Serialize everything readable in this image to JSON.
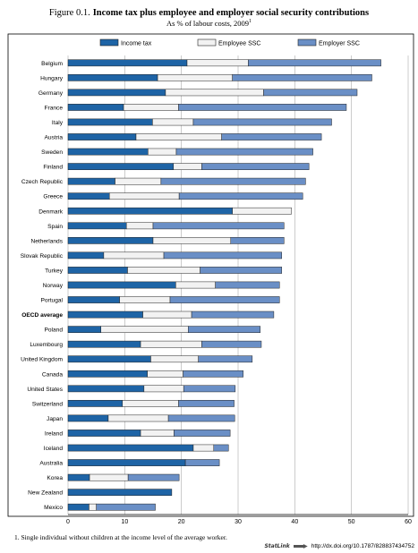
{
  "figure": {
    "label": "Figure 0.1.",
    "title": "Income tax plus employee and employer social security contributions",
    "subtitle": "As % of labour costs, 2009",
    "subtitle_note_mark": "1"
  },
  "footnote": "1.  Single individual without children at the income level of the average worker.",
  "statlink": {
    "brand": "StatLink",
    "url": "http://dx.doi.org/10.1787/828837434752"
  },
  "colors": {
    "income_tax": "#1e64a6",
    "employee_ssc": "#f2f2f2",
    "employer_ssc": "#6a8fc6",
    "bar_stroke": "#222222",
    "grid": "#9a9a9a"
  },
  "chart_data": {
    "type": "bar",
    "orientation": "horizontal",
    "stacked": true,
    "title": "Income tax plus employee and employer social security contributions",
    "subtitle": "As % of labour costs, 2009",
    "xlim": [
      0,
      60
    ],
    "xticks": [
      0,
      10,
      20,
      30,
      40,
      50,
      60
    ],
    "grid": true,
    "legend_position": "top",
    "categories": [
      "Belgium",
      "Hungary",
      "Germany",
      "France",
      "Italy",
      "Austria",
      "Sweden",
      "Finland",
      "Czech Republic",
      "Greece",
      "Denmark",
      "Spain",
      "Netherlands",
      "Slovak Republic",
      "Turkey",
      "Norway",
      "Portugal",
      "OECD average",
      "Poland",
      "Luxembourg",
      "United Kingdom",
      "Canada",
      "United States",
      "Switzerland",
      "Japan",
      "Ireland",
      "Iceland",
      "Australia",
      "Korea",
      "New Zealand",
      "Mexico"
    ],
    "highlight_category": "OECD average",
    "series": [
      {
        "name": "Income tax",
        "color": "#1e64a6",
        "values": [
          21.0,
          15.8,
          17.2,
          9.8,
          14.9,
          12.0,
          14.1,
          18.6,
          8.3,
          7.3,
          29.0,
          10.3,
          15.0,
          6.3,
          10.5,
          19.0,
          9.1,
          13.2,
          5.8,
          12.8,
          14.6,
          14.0,
          13.4,
          9.6,
          7.1,
          12.8,
          22.1,
          20.7,
          3.8,
          18.3,
          3.7
        ]
      },
      {
        "name": "Employee SSC",
        "color": "#f2f2f2",
        "values": [
          10.8,
          13.2,
          17.3,
          9.7,
          7.2,
          15.1,
          5.0,
          5.0,
          8.1,
          12.3,
          10.4,
          4.7,
          13.7,
          10.6,
          12.8,
          7.0,
          8.9,
          8.6,
          15.4,
          10.8,
          8.4,
          6.3,
          7.0,
          9.9,
          10.6,
          5.9,
          3.6,
          0.0,
          6.8,
          0.0,
          1.3
        ]
      },
      {
        "name": "Employer SSC",
        "color": "#6a8fc6",
        "values": [
          23.4,
          24.6,
          16.5,
          29.6,
          24.4,
          17.6,
          24.1,
          18.9,
          25.5,
          21.8,
          0.0,
          23.1,
          9.4,
          20.8,
          14.4,
          11.3,
          19.3,
          14.5,
          12.7,
          10.5,
          9.5,
          10.6,
          9.1,
          9.8,
          11.7,
          9.9,
          2.6,
          6.0,
          9.0,
          0.0,
          10.4
        ]
      }
    ]
  }
}
